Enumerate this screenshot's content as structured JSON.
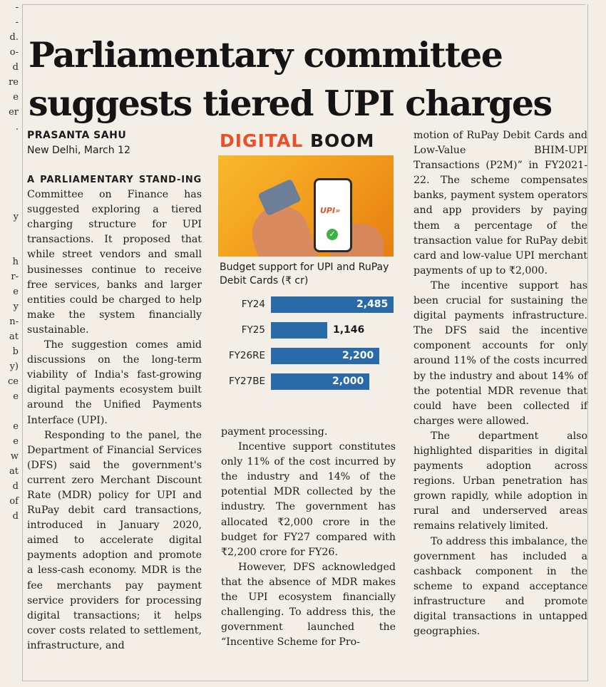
{
  "edge_left": [
    "-",
    "-",
    "d.",
    "o-",
    "d",
    "re",
    "e",
    "er",
    ".",
    "",
    "",
    "",
    "",
    "",
    "y",
    "",
    "",
    "h",
    "r-",
    "e",
    "y",
    "n-",
    "at",
    "b",
    "y)",
    "ce",
    "e",
    "",
    "e",
    "e",
    "w",
    "at",
    "d",
    "of",
    "d"
  ],
  "headline": "Parliamentary committee suggests tiered UPI charges",
  "byline": {
    "author": "PRASANTA SAHU",
    "dateline": "New Delhi, March 12"
  },
  "graphic": {
    "title_word1": "DIGITAL",
    "title_word2": "BOOM",
    "upi_logo_text": "UPI",
    "upi_logo_mark": "»",
    "tick_glyph": "✓",
    "chart_title": "Budget support for UPI and RuPay Debit Cards (₹ cr)"
  },
  "chart_data": {
    "type": "bar",
    "orientation": "horizontal",
    "title": "Budget support for UPI and RuPay Debit Cards (₹ cr)",
    "categories": [
      "FY24",
      "FY25",
      "FY26RE",
      "FY27BE"
    ],
    "values": [
      2485,
      1146,
      2200,
      2000
    ],
    "value_labels": [
      "2,485",
      "1,146",
      "2,200",
      "2,000"
    ],
    "bar_color": "#2b6aa8",
    "xlim": [
      0,
      2485
    ]
  },
  "article": {
    "kicker": "A PARLIAMENTARY STAND-ING",
    "p1": "Committee on Finance has suggested exploring a tiered charging structure for UPI transactions. It proposed that while street vendors and small businesses continue to receive free services, banks and larger entities could be charged to help make the system financially sustainable.",
    "p2": "The suggestion comes amid discussions on the long-term viability of India's fast-growing digital payments ecosystem built around the Unified Payments Interface (UPI).",
    "p3": "Responding to the panel, the Department of Financial Services (DFS) said the government's current zero Merchant Discount Rate (MDR) policy for UPI and RuPay debit card transactions, introduced in January 2020, aimed to accelerate digital payments adoption and promote a less-cash economy. MDR is the fee merchants pay payment service providers for processing digital transactions; it helps cover costs related to settlement, infrastructure, and",
    "p4": "payment processing.",
    "p5": "Incentive support constitutes only 11% of the cost incurred by the industry and 14% of the potential MDR collected by the industry. The government has allocated ₹2,000 crore in the budget for FY27 compared with ₹2,200 crore for FY26.",
    "p6": "However, DFS acknowledged that the absence of MDR makes the UPI ecosystem financially challenging. To address this, the government launched the “Incentive Scheme for Pro-",
    "p7": "motion of RuPay Debit Cards and Low-Value BHIM-UPI Transactions (P2M)” in FY2021-22. The scheme compensates banks, payment system operators and app providers by paying them a percentage of the transaction value for RuPay debit card and low-value UPI merchant payments of up to ₹2,000.",
    "p8": "The incentive support has been crucial for sustaining the digital payments infrastructure. The DFS said the incentive component accounts for only around 11% of the costs incurred by the industry and about 14% of the potential MDR revenue that could have been collected if charges were allowed.",
    "p9": "The department also highlighted disparities in digital payments adoption across regions. Urban penetration has grown rapidly, while adoption in rural and underserved areas remains relatively limited.",
    "p10": "To address this imbalance, the government has included a cashback component in the scheme to expand acceptance infrastructure and promote digital transactions in untapped geographies."
  }
}
